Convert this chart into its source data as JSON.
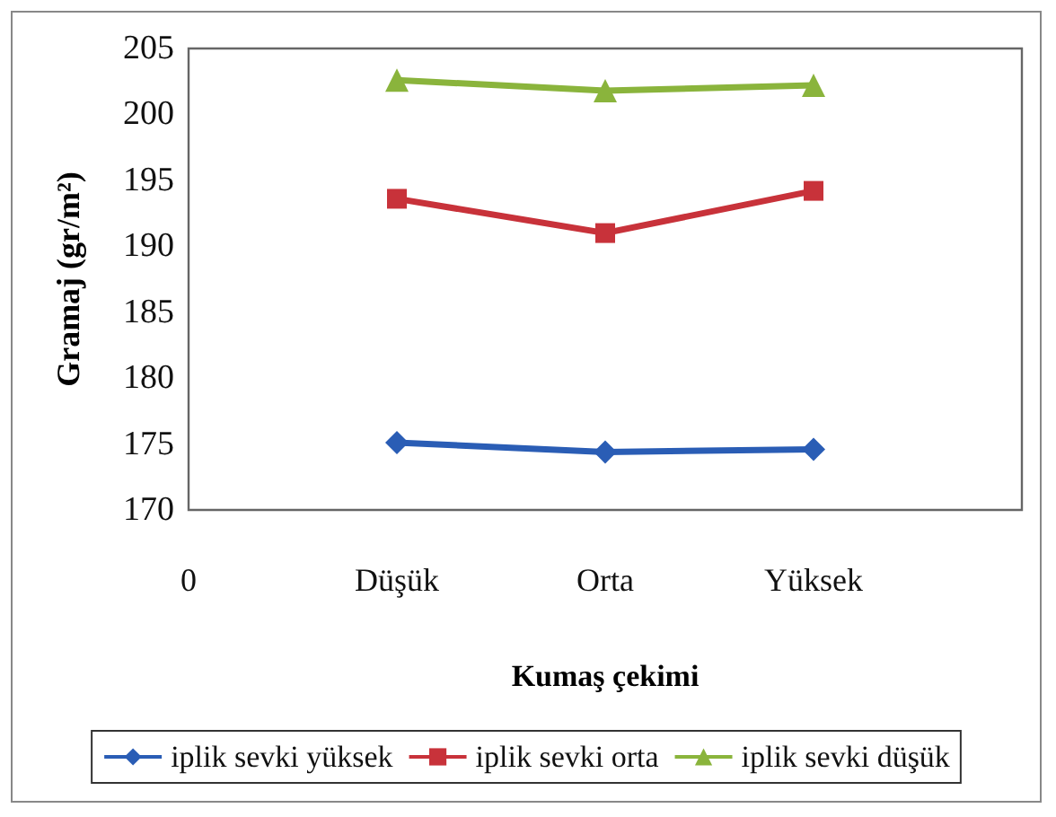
{
  "chart_data": {
    "type": "line",
    "xlabel": "Kumaş çekimi",
    "ylabel": "Gramaj (gr/m²)",
    "categories": [
      "0",
      "Düşük",
      "Orta",
      "Yüksek",
      null
    ],
    "series": [
      {
        "name": "iplik sevki yüksek",
        "color": "#2a5db5",
        "marker": "diamond",
        "values": [
          null,
          175.1,
          174.4,
          174.6,
          null
        ]
      },
      {
        "name": "iplik sevki orta",
        "color": "#c8323a",
        "marker": "square",
        "values": [
          null,
          193.6,
          191.0,
          194.2,
          null
        ]
      },
      {
        "name": "iplik sevki düşük",
        "color": "#8ab43c",
        "marker": "triangle",
        "values": [
          null,
          202.6,
          201.8,
          202.2,
          null
        ]
      }
    ],
    "ylim": [
      170,
      205
    ],
    "yticks": [
      170,
      175,
      180,
      185,
      190,
      195,
      200,
      205
    ],
    "grid": false,
    "legend": "bottom"
  }
}
